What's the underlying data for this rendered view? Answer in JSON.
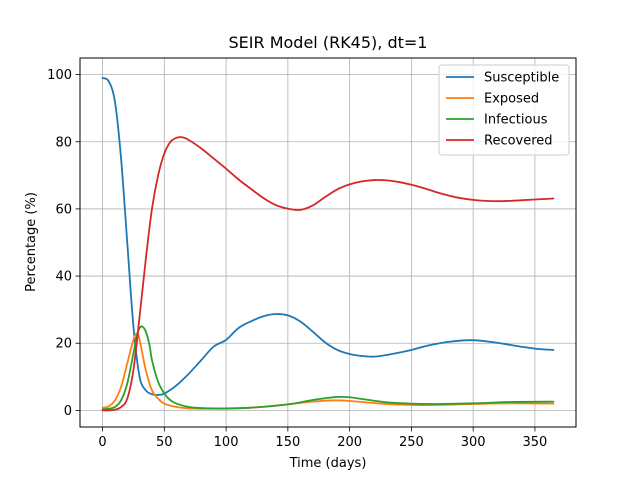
{
  "chart_data": {
    "type": "line",
    "title": "SEIR Model (RK45), dt=1",
    "xlabel": "Time (days)",
    "ylabel": "Percentage (%)",
    "xlim": [
      -18.25,
      383.25
    ],
    "ylim": [
      -4.95,
      104.95
    ],
    "xticks": [
      0,
      50,
      100,
      150,
      200,
      250,
      300,
      350
    ],
    "yticks": [
      0,
      20,
      40,
      60,
      80,
      100
    ],
    "grid": true,
    "legend_position": "top-right",
    "series": [
      {
        "name": "Susceptible",
        "color": "#1f77b4",
        "x": [
          0,
          5,
          10,
          15,
          20,
          25,
          30,
          35,
          40,
          45,
          50,
          60,
          70,
          80,
          90,
          100,
          110,
          120,
          130,
          140,
          150,
          160,
          170,
          180,
          190,
          200,
          210,
          220,
          230,
          240,
          250,
          260,
          270,
          280,
          290,
          300,
          310,
          320,
          330,
          340,
          350,
          360,
          365
        ],
        "y": [
          99.0,
          98.0,
          92.0,
          75.0,
          50.0,
          25.0,
          10.0,
          6.0,
          4.8,
          4.6,
          5.0,
          7.5,
          11.0,
          15.0,
          19.0,
          21.0,
          24.5,
          26.5,
          28.0,
          28.7,
          28.3,
          26.5,
          23.5,
          20.3,
          18.0,
          16.8,
          16.2,
          16.0,
          16.5,
          17.2,
          18.0,
          19.0,
          19.8,
          20.4,
          20.8,
          20.9,
          20.6,
          20.1,
          19.5,
          18.9,
          18.4,
          18.1,
          18.0
        ]
      },
      {
        "name": "Exposed",
        "color": "#ff7f0e",
        "x": [
          0,
          5,
          10,
          15,
          20,
          25,
          28,
          30,
          35,
          40,
          45,
          50,
          60,
          70,
          80,
          100,
          120,
          150,
          170,
          190,
          210,
          230,
          250,
          270,
          300,
          330,
          365
        ],
        "y": [
          0.8,
          1.2,
          3.0,
          7.0,
          14.0,
          21.0,
          23.0,
          21.0,
          12.0,
          6.0,
          3.5,
          2.0,
          1.0,
          0.6,
          0.5,
          0.5,
          0.8,
          1.8,
          2.6,
          3.0,
          2.5,
          1.9,
          1.6,
          1.6,
          1.9,
          2.1,
          2.0
        ]
      },
      {
        "name": "Infectious",
        "color": "#2ca02c",
        "x": [
          0,
          5,
          10,
          15,
          20,
          25,
          28,
          30,
          32,
          35,
          38,
          40,
          45,
          50,
          55,
          60,
          70,
          80,
          90,
          100,
          120,
          150,
          170,
          180,
          190,
          200,
          210,
          230,
          250,
          270,
          300,
          330,
          365
        ],
        "y": [
          0.3,
          0.5,
          1.0,
          3.0,
          8.0,
          17.0,
          22.5,
          24.5,
          25.0,
          23.5,
          19.5,
          15.0,
          8.5,
          5.0,
          3.0,
          2.0,
          1.0,
          0.7,
          0.6,
          0.6,
          0.8,
          1.8,
          3.1,
          3.6,
          4.0,
          3.9,
          3.4,
          2.4,
          2.0,
          1.9,
          2.1,
          2.5,
          2.6
        ]
      },
      {
        "name": "Recovered",
        "color": "#d62728",
        "x": [
          0,
          5,
          10,
          15,
          20,
          25,
          30,
          35,
          40,
          45,
          50,
          55,
          60,
          65,
          70,
          80,
          90,
          100,
          110,
          120,
          130,
          140,
          150,
          160,
          170,
          180,
          190,
          200,
          210,
          220,
          230,
          240,
          250,
          260,
          270,
          280,
          290,
          300,
          310,
          320,
          330,
          340,
          350,
          360,
          365
        ],
        "y": [
          0.0,
          0.0,
          0.2,
          1.0,
          3.5,
          12.0,
          28.0,
          45.0,
          60.0,
          70.0,
          76.5,
          80.0,
          81.2,
          81.3,
          80.5,
          78.0,
          75.0,
          72.0,
          68.8,
          66.0,
          63.3,
          61.2,
          60.1,
          59.7,
          61.0,
          63.5,
          65.8,
          67.3,
          68.2,
          68.6,
          68.5,
          68.0,
          67.2,
          66.2,
          65.0,
          64.0,
          63.2,
          62.7,
          62.4,
          62.3,
          62.4,
          62.6,
          62.8,
          63.0,
          63.1
        ]
      }
    ]
  }
}
